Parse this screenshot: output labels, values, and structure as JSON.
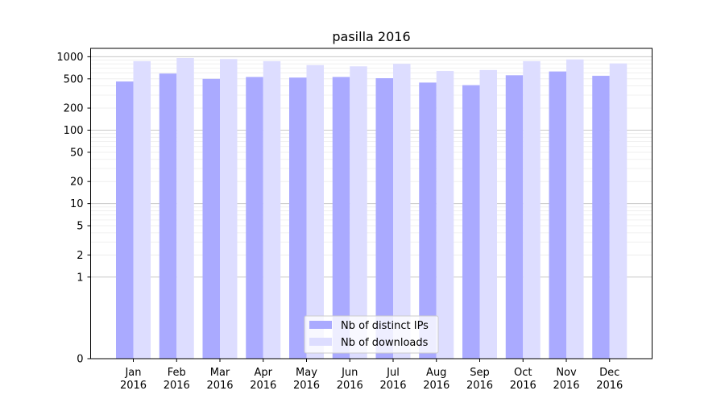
{
  "chart_data": {
    "type": "bar",
    "title": "pasilla 2016",
    "xlabel": "",
    "ylabel": "",
    "categories": [
      [
        "Jan",
        "2016"
      ],
      [
        "Feb",
        "2016"
      ],
      [
        "Mar",
        "2016"
      ],
      [
        "Apr",
        "2016"
      ],
      [
        "May",
        "2016"
      ],
      [
        "Jun",
        "2016"
      ],
      [
        "Jul",
        "2016"
      ],
      [
        "Aug",
        "2016"
      ],
      [
        "Sep",
        "2016"
      ],
      [
        "Oct",
        "2016"
      ],
      [
        "Nov",
        "2016"
      ],
      [
        "Dec",
        "2016"
      ]
    ],
    "series": [
      {
        "name": "Nb of distinct IPs",
        "color": "#aaaaff",
        "values": [
          460,
          590,
          500,
          530,
          520,
          530,
          510,
          445,
          410,
          560,
          630,
          550
        ]
      },
      {
        "name": "Nb of downloads",
        "color": "#ddddff",
        "values": [
          870,
          960,
          930,
          870,
          770,
          740,
          800,
          640,
          660,
          870,
          920,
          810
        ]
      }
    ],
    "y_scale": "symlog",
    "ylim": [
      0,
      1300
    ],
    "y_ticks": [
      0,
      1,
      2,
      5,
      10,
      20,
      50,
      100,
      200,
      500,
      1000
    ],
    "grid": true,
    "legend_position": "lower center"
  }
}
